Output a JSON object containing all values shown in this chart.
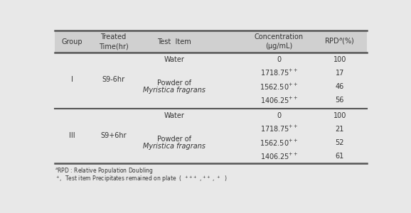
{
  "bg_color": "#e8e8e8",
  "header_bg": "#d0d0d0",
  "text_color": "#333333",
  "line_color": "#555555",
  "groups": [
    {
      "group": "I",
      "treated": "S9-6hr",
      "rpd_water": "100",
      "rpd_rows": [
        "17",
        "46",
        "56"
      ]
    },
    {
      "group": "III",
      "treated": "S9+6hr",
      "rpd_water": "100",
      "rpd_rows": [
        "21",
        "52",
        "61"
      ]
    }
  ],
  "conc_vals": [
    "1718.75",
    "1562.50",
    "1406.25"
  ],
  "font_size": 7,
  "footnote_fontsize": 5.5
}
